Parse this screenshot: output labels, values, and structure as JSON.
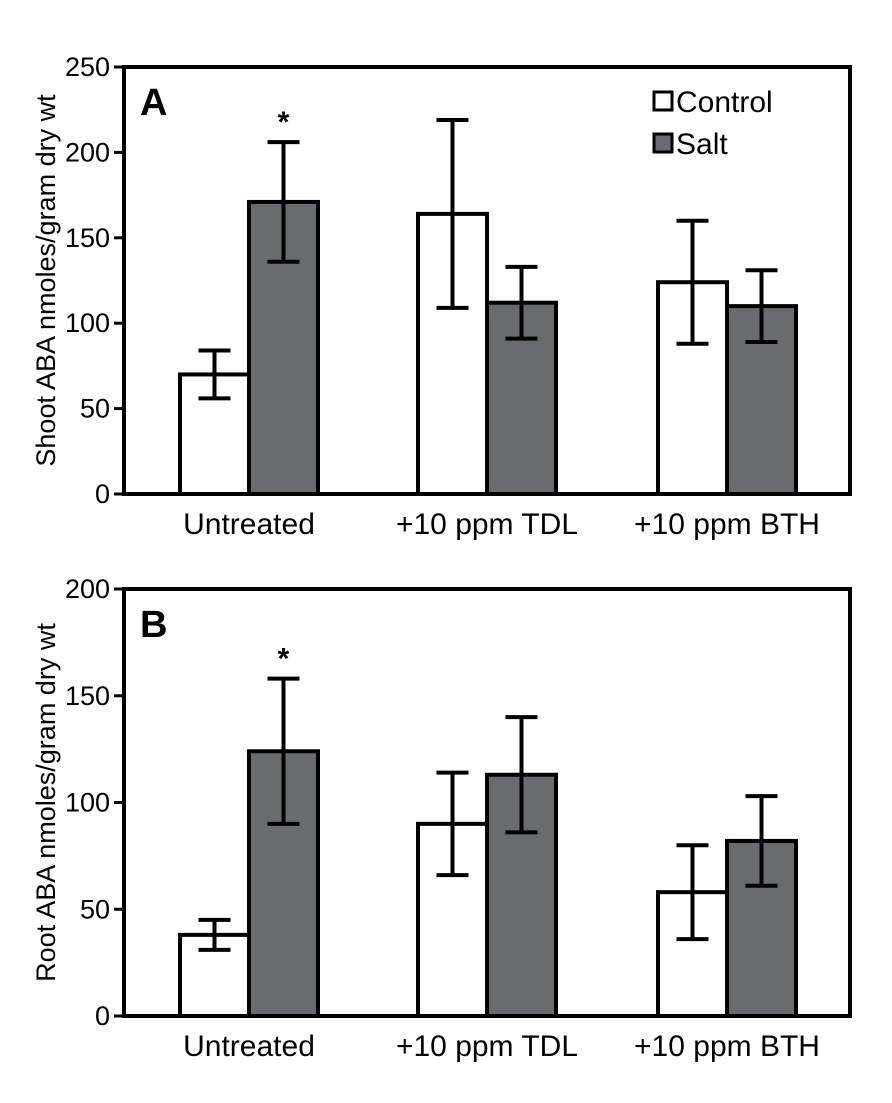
{
  "chart_data": [
    {
      "panel": "A",
      "type": "bar",
      "ylabel": "Shoot ABA nmoles/gram dry wt",
      "ylim": [
        0,
        250
      ],
      "yticks": [
        0,
        50,
        100,
        150,
        200,
        250
      ],
      "categories": [
        "Untreated",
        "+10 ppm TDL",
        "+10 ppm BTH"
      ],
      "series": [
        {
          "name": "Control",
          "color": "#ffffff",
          "values": [
            70,
            164,
            124
          ],
          "errors": [
            14,
            55,
            36
          ]
        },
        {
          "name": "Salt",
          "color": "#6a6b6d",
          "values": [
            171,
            112,
            110
          ],
          "errors": [
            35,
            21,
            21
          ]
        }
      ],
      "annotations": [
        {
          "text": "*",
          "category": "Untreated",
          "series": "Salt"
        }
      ],
      "legend": {
        "position": "top-right",
        "labels": [
          "Control",
          "Salt"
        ]
      }
    },
    {
      "panel": "B",
      "type": "bar",
      "ylabel": "Root ABA nmoles/gram dry wt",
      "ylim": [
        0,
        200
      ],
      "yticks": [
        0,
        50,
        100,
        150,
        200
      ],
      "categories": [
        "Untreated",
        "+10 ppm TDL",
        "+10 ppm BTH"
      ],
      "series": [
        {
          "name": "Control",
          "color": "#ffffff",
          "values": [
            38,
            90,
            58
          ],
          "errors": [
            7,
            24,
            22
          ]
        },
        {
          "name": "Salt",
          "color": "#6a6b6d",
          "values": [
            124,
            113,
            82
          ],
          "errors": [
            34,
            27,
            21
          ]
        }
      ],
      "annotations": [
        {
          "text": "*",
          "category": "Untreated",
          "series": "Salt"
        }
      ],
      "legend": null
    }
  ]
}
